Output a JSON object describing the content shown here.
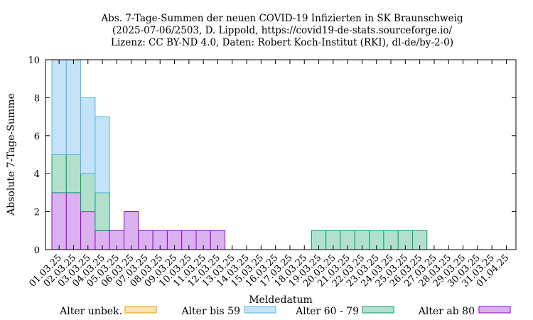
{
  "chart_data": {
    "type": "bar",
    "stacked": true,
    "title_lines": [
      "Abs. 7-Tage-Summen der neuen COVID-19 Infizierten in SK Braunschweig",
      "(2025-07-06/2503, D. Lippold, https://covid19-de-stats.sourceforge.io/",
      "Lizenz: CC BY-ND 4.0, Daten: Robert Koch-Institut (RKI), dl-de/by-2-0)"
    ],
    "xlabel": "Meldedatum",
    "ylabel": "Absolute 7-Tage-Summe",
    "ylim": [
      0,
      10
    ],
    "yticks": [
      "0",
      "2",
      "4",
      "6",
      "8",
      "10"
    ],
    "grid": false,
    "legend_position": "bottom",
    "categories": [
      "01.03.25",
      "02.03.25",
      "03.03.25",
      "04.03.25",
      "05.03.25",
      "06.03.25",
      "07.03.25",
      "08.03.25",
      "09.03.25",
      "10.03.25",
      "11.03.25",
      "12.03.25",
      "13.03.25",
      "14.03.25",
      "15.03.25",
      "16.03.25",
      "17.03.25",
      "18.03.25",
      "19.03.25",
      "20.03.25",
      "21.03.25",
      "22.03.25",
      "23.03.25",
      "24.03.25",
      "25.03.25",
      "26.03.25",
      "27.03.25",
      "28.03.25",
      "29.03.25",
      "30.03.25",
      "31.03.25",
      "01.04.25"
    ],
    "series": [
      {
        "name": "Alter ab 80",
        "color": "#dcb1f0",
        "edge": "#9400d3",
        "values": [
          3,
          3,
          2,
          1,
          1,
          2,
          1,
          1,
          1,
          1,
          1,
          1,
          0,
          0,
          0,
          0,
          0,
          0,
          0,
          0,
          0,
          0,
          0,
          0,
          0,
          0,
          0,
          0,
          0,
          0,
          0,
          0
        ]
      },
      {
        "name": "Alter 60 - 79",
        "color": "#b3e0cd",
        "edge": "#009e73",
        "values": [
          2,
          2,
          2,
          2,
          0,
          0,
          0,
          0,
          0,
          0,
          0,
          0,
          0,
          0,
          0,
          0,
          0,
          0,
          1,
          1,
          1,
          1,
          1,
          1,
          1,
          1,
          0,
          0,
          0,
          0,
          0,
          0
        ]
      },
      {
        "name": "Alter bis 59",
        "color": "#c5e3f6",
        "edge": "#56b4e9",
        "values": [
          5,
          5,
          4,
          4,
          0,
          0,
          0,
          0,
          0,
          0,
          0,
          0,
          0,
          0,
          0,
          0,
          0,
          0,
          0,
          0,
          0,
          0,
          0,
          0,
          0,
          0,
          0,
          0,
          0,
          0,
          0,
          0
        ]
      },
      {
        "name": "Alter unbek.",
        "color": "#fbe3ae",
        "edge": "#e69f00",
        "values": [
          0,
          0,
          0,
          0,
          0,
          0,
          0,
          0,
          0,
          0,
          0,
          0,
          0,
          0,
          0,
          0,
          0,
          0,
          0,
          0,
          0,
          0,
          0,
          0,
          0,
          0,
          0,
          0,
          0,
          0,
          0,
          0
        ]
      }
    ],
    "legend_order": [
      "Alter unbek.",
      "Alter bis 59",
      "Alter 60 - 79",
      "Alter ab 80"
    ]
  }
}
